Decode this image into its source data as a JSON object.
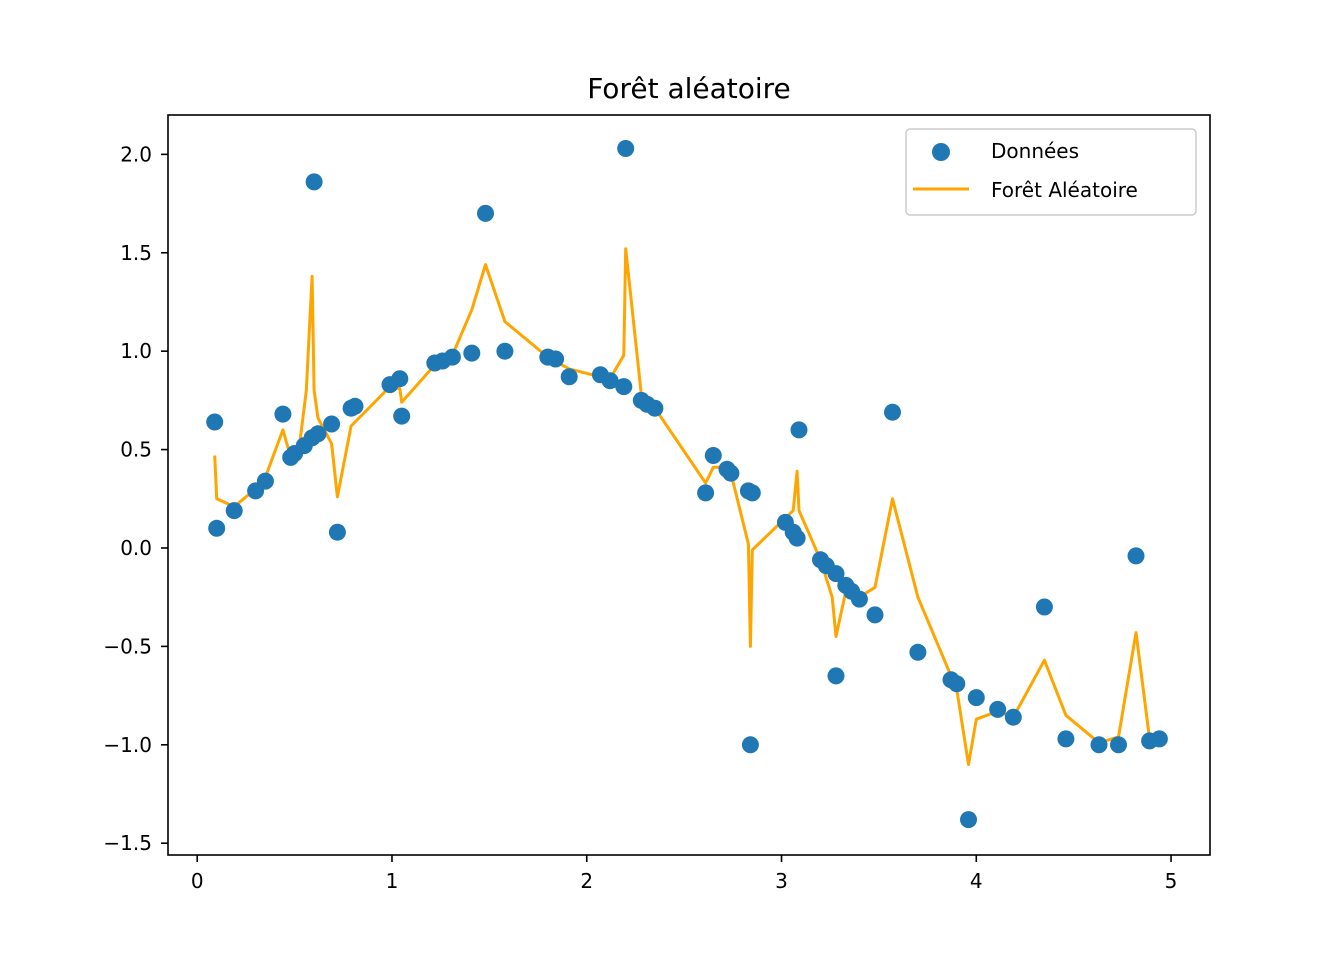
{
  "chart_data": {
    "type": "scatter",
    "title": "Forêt aléatoire",
    "xlabel": "",
    "ylabel": "",
    "xlim": [
      -0.15,
      5.2
    ],
    "ylim": [
      -1.56,
      2.2
    ],
    "x_ticks": [
      0,
      1,
      2,
      3,
      4,
      5
    ],
    "x_tick_labels": [
      "0",
      "1",
      "2",
      "3",
      "4",
      "5"
    ],
    "y_ticks": [
      -1.5,
      -1.0,
      -0.5,
      0.0,
      0.5,
      1.0,
      1.5,
      2.0
    ],
    "y_tick_labels": [
      "−1.5",
      "−1.0",
      "−0.5",
      "0.0",
      "0.5",
      "1.0",
      "1.5",
      "2.0"
    ],
    "grid": false,
    "legend_position": "top-right",
    "series": [
      {
        "name": "Données",
        "kind": "scatter",
        "color": "#1f77b4",
        "points": [
          [
            0.09,
            0.64
          ],
          [
            0.1,
            0.1
          ],
          [
            0.19,
            0.19
          ],
          [
            0.3,
            0.29
          ],
          [
            0.35,
            0.34
          ],
          [
            0.44,
            0.68
          ],
          [
            0.48,
            0.46
          ],
          [
            0.5,
            0.48
          ],
          [
            0.55,
            0.52
          ],
          [
            0.59,
            0.56
          ],
          [
            0.6,
            1.86
          ],
          [
            0.62,
            0.58
          ],
          [
            0.69,
            0.63
          ],
          [
            0.72,
            0.08
          ],
          [
            0.79,
            0.71
          ],
          [
            0.81,
            0.72
          ],
          [
            0.99,
            0.83
          ],
          [
            1.04,
            0.86
          ],
          [
            1.05,
            0.67
          ],
          [
            1.22,
            0.94
          ],
          [
            1.26,
            0.95
          ],
          [
            1.31,
            0.97
          ],
          [
            1.41,
            0.99
          ],
          [
            1.48,
            1.7
          ],
          [
            1.58,
            1.0
          ],
          [
            1.8,
            0.97
          ],
          [
            1.84,
            0.96
          ],
          [
            1.91,
            0.87
          ],
          [
            2.07,
            0.88
          ],
          [
            2.12,
            0.85
          ],
          [
            2.19,
            0.82
          ],
          [
            2.2,
            2.03
          ],
          [
            2.28,
            0.75
          ],
          [
            2.31,
            0.73
          ],
          [
            2.35,
            0.71
          ],
          [
            2.61,
            0.28
          ],
          [
            2.65,
            0.47
          ],
          [
            2.72,
            0.4
          ],
          [
            2.74,
            0.38
          ],
          [
            2.83,
            0.29
          ],
          [
            2.85,
            0.28
          ],
          [
            2.84,
            -1.0
          ],
          [
            3.02,
            0.13
          ],
          [
            3.06,
            0.08
          ],
          [
            3.08,
            0.05
          ],
          [
            3.09,
            0.6
          ],
          [
            3.2,
            -0.06
          ],
          [
            3.23,
            -0.09
          ],
          [
            3.28,
            -0.13
          ],
          [
            3.28,
            -0.65
          ],
          [
            3.33,
            -0.19
          ],
          [
            3.36,
            -0.22
          ],
          [
            3.4,
            -0.26
          ],
          [
            3.48,
            -0.34
          ],
          [
            3.57,
            0.69
          ],
          [
            3.7,
            -0.53
          ],
          [
            3.87,
            -0.67
          ],
          [
            3.9,
            -0.69
          ],
          [
            3.96,
            -1.38
          ],
          [
            4.0,
            -0.76
          ],
          [
            4.11,
            -0.82
          ],
          [
            4.19,
            -0.86
          ],
          [
            4.35,
            -0.3
          ],
          [
            4.46,
            -0.97
          ],
          [
            4.63,
            -1.0
          ],
          [
            4.73,
            -1.0
          ],
          [
            4.82,
            -0.04
          ],
          [
            4.89,
            -0.98
          ],
          [
            4.94,
            -0.97
          ]
        ]
      },
      {
        "name": "Forêt Aléatoire",
        "kind": "line",
        "color": "#ffa500",
        "points": [
          [
            0.09,
            0.47
          ],
          [
            0.1,
            0.25
          ],
          [
            0.19,
            0.21
          ],
          [
            0.3,
            0.3
          ],
          [
            0.35,
            0.36
          ],
          [
            0.44,
            0.6
          ],
          [
            0.48,
            0.46
          ],
          [
            0.52,
            0.48
          ],
          [
            0.56,
            0.8
          ],
          [
            0.59,
            1.38
          ],
          [
            0.6,
            0.8
          ],
          [
            0.62,
            0.66
          ],
          [
            0.69,
            0.53
          ],
          [
            0.72,
            0.26
          ],
          [
            0.79,
            0.62
          ],
          [
            0.99,
            0.82
          ],
          [
            1.04,
            0.81
          ],
          [
            1.05,
            0.74
          ],
          [
            1.22,
            0.93
          ],
          [
            1.26,
            0.96
          ],
          [
            1.31,
            0.98
          ],
          [
            1.41,
            1.21
          ],
          [
            1.48,
            1.44
          ],
          [
            1.58,
            1.15
          ],
          [
            1.8,
            0.97
          ],
          [
            1.91,
            0.91
          ],
          [
            2.07,
            0.87
          ],
          [
            2.12,
            0.86
          ],
          [
            2.19,
            0.98
          ],
          [
            2.2,
            1.52
          ],
          [
            2.28,
            0.78
          ],
          [
            2.35,
            0.71
          ],
          [
            2.61,
            0.33
          ],
          [
            2.65,
            0.41
          ],
          [
            2.72,
            0.41
          ],
          [
            2.74,
            0.38
          ],
          [
            2.83,
            0.02
          ],
          [
            2.84,
            -0.5
          ],
          [
            2.85,
            -0.01
          ],
          [
            3.06,
            0.19
          ],
          [
            3.08,
            0.39
          ],
          [
            3.09,
            0.19
          ],
          [
            3.2,
            -0.06
          ],
          [
            3.26,
            -0.25
          ],
          [
            3.28,
            -0.45
          ],
          [
            3.33,
            -0.22
          ],
          [
            3.4,
            -0.25
          ],
          [
            3.48,
            -0.2
          ],
          [
            3.57,
            0.25
          ],
          [
            3.7,
            -0.25
          ],
          [
            3.9,
            -0.72
          ],
          [
            3.96,
            -1.1
          ],
          [
            4.0,
            -0.87
          ],
          [
            4.11,
            -0.83
          ],
          [
            4.19,
            -0.86
          ],
          [
            4.35,
            -0.57
          ],
          [
            4.46,
            -0.85
          ],
          [
            4.63,
            -0.99
          ],
          [
            4.73,
            -0.96
          ],
          [
            4.82,
            -0.43
          ],
          [
            4.89,
            -0.97
          ],
          [
            4.94,
            -0.96
          ]
        ]
      }
    ]
  }
}
